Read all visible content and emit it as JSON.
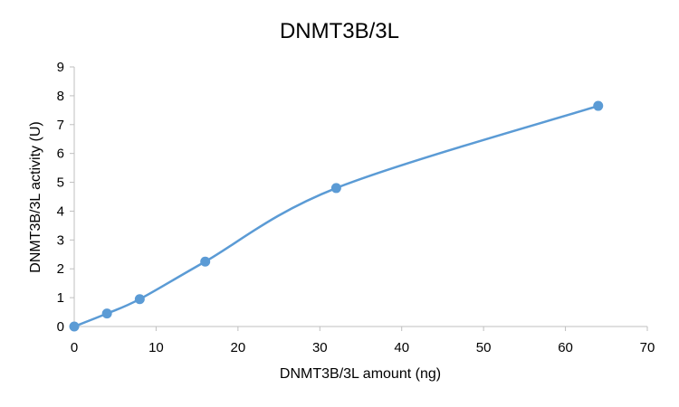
{
  "chart_data": {
    "type": "line",
    "title": "DNMT3B/3L",
    "xlabel": "DNMT3B/3L amount (ng)",
    "ylabel": "DNMT3B/3L activity (U)",
    "xlim": [
      0,
      70
    ],
    "ylim": [
      0,
      9
    ],
    "x_ticks": [
      "0",
      "10",
      "20",
      "30",
      "40",
      "50",
      "60",
      "70"
    ],
    "y_ticks": [
      "0",
      "1",
      "2",
      "3",
      "4",
      "5",
      "6",
      "7",
      "8",
      "9"
    ],
    "grid": false,
    "smooth": true,
    "color": "#5b9bd5",
    "series": [
      {
        "x": [
          0,
          4,
          8,
          16,
          32,
          64
        ],
        "y": [
          0.0,
          0.45,
          0.95,
          2.25,
          4.8,
          7.65
        ]
      }
    ]
  }
}
